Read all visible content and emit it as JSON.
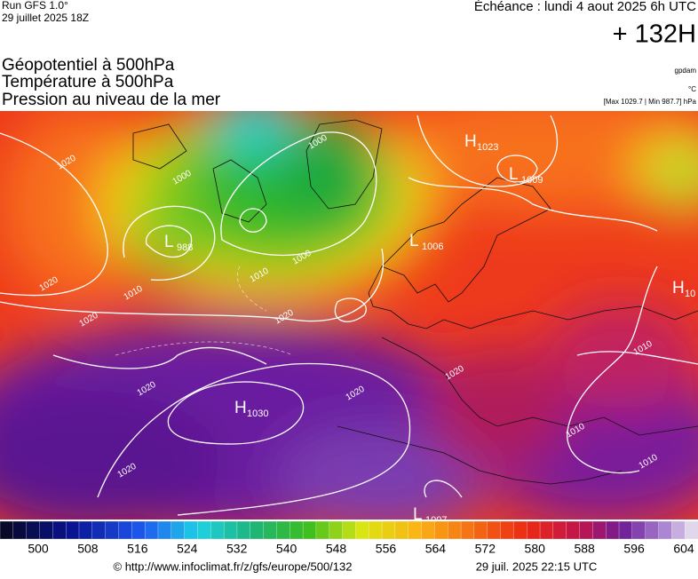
{
  "header": {
    "run": "Run GFS 1.0°",
    "run_time": "29 juillet 2025 18Z",
    "valid": "Échéance : lundi 4 aout 2025 6h UTC",
    "lead": "+ 132H"
  },
  "titles": [
    "Géopotentiel à 500hPa",
    "Température à 500hPa",
    "Pression au niveau de la mer"
  ],
  "units": [
    "gpdam",
    "°C",
    "[Max 1029.7 | Min 987.7] hPa"
  ],
  "pressure_centers": [
    {
      "letter": "H",
      "value": "1023"
    },
    {
      "letter": "L",
      "value": "1009"
    },
    {
      "letter": "L",
      "value": "988"
    },
    {
      "letter": "L",
      "value": "1006"
    },
    {
      "letter": "H",
      "value": "1030"
    },
    {
      "letter": "L",
      "value": "1007"
    },
    {
      "letter": "H",
      "value": "10"
    }
  ],
  "contour_labels": [
    "1020",
    "1020",
    "1020",
    "1020",
    "1020",
    "1020",
    "1000",
    "1000",
    "1000",
    "1010",
    "1010",
    "1010",
    "1010",
    "1010",
    "1020",
    "1020"
  ],
  "colorbar": {
    "ticks": [
      "500",
      "508",
      "516",
      "524",
      "532",
      "540",
      "548",
      "556",
      "564",
      "572",
      "580",
      "588",
      "596",
      "604"
    ]
  },
  "footer": {
    "url": "© http://www.infoclimat.fr/z/gfs/europe/500/132",
    "timestamp": "29 juil. 2025 22:15 UTC"
  }
}
